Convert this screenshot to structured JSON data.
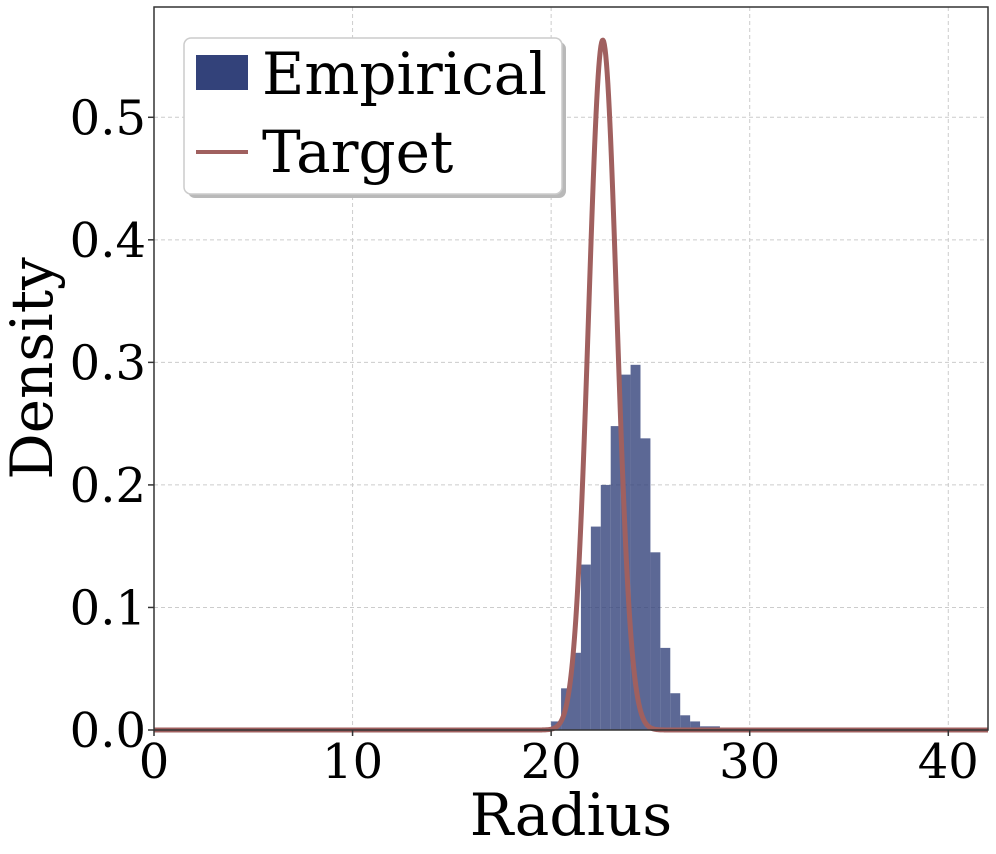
{
  "chart_data": {
    "type": "histogram",
    "xlabel": "Radius",
    "ylabel": "Density",
    "xlim": [
      0,
      42
    ],
    "ylim": [
      0,
      0.59
    ],
    "xticks": [
      0,
      10,
      20,
      30,
      40
    ],
    "xtick_labels": [
      "0",
      "10",
      "20",
      "30",
      "40"
    ],
    "yticks": [
      0.0,
      0.1,
      0.2,
      0.3,
      0.4,
      0.5
    ],
    "ytick_labels": [
      "0.0",
      "0.1",
      "0.2",
      "0.3",
      "0.4",
      "0.5"
    ],
    "grid": true,
    "legend_position": "top-left",
    "series": [
      {
        "name": "Empirical",
        "kind": "histogram",
        "color": "#33427a",
        "bin_width": 0.5,
        "bin_left_edges": [
          19.5,
          20.0,
          20.5,
          21.0,
          21.5,
          22.0,
          22.5,
          23.0,
          23.5,
          24.0,
          24.5,
          25.0,
          25.5,
          26.0,
          26.5,
          27.0,
          27.5,
          28.0
        ],
        "values": [
          0.002,
          0.007,
          0.034,
          0.063,
          0.135,
          0.166,
          0.2,
          0.248,
          0.29,
          0.298,
          0.238,
          0.145,
          0.067,
          0.03,
          0.012,
          0.007,
          0.003,
          0.003
        ]
      },
      {
        "name": "Target",
        "kind": "line",
        "color": "#a0605f",
        "distribution": "normal",
        "mean": 22.6,
        "std": 0.71,
        "peak_density": 0.563
      }
    ]
  }
}
